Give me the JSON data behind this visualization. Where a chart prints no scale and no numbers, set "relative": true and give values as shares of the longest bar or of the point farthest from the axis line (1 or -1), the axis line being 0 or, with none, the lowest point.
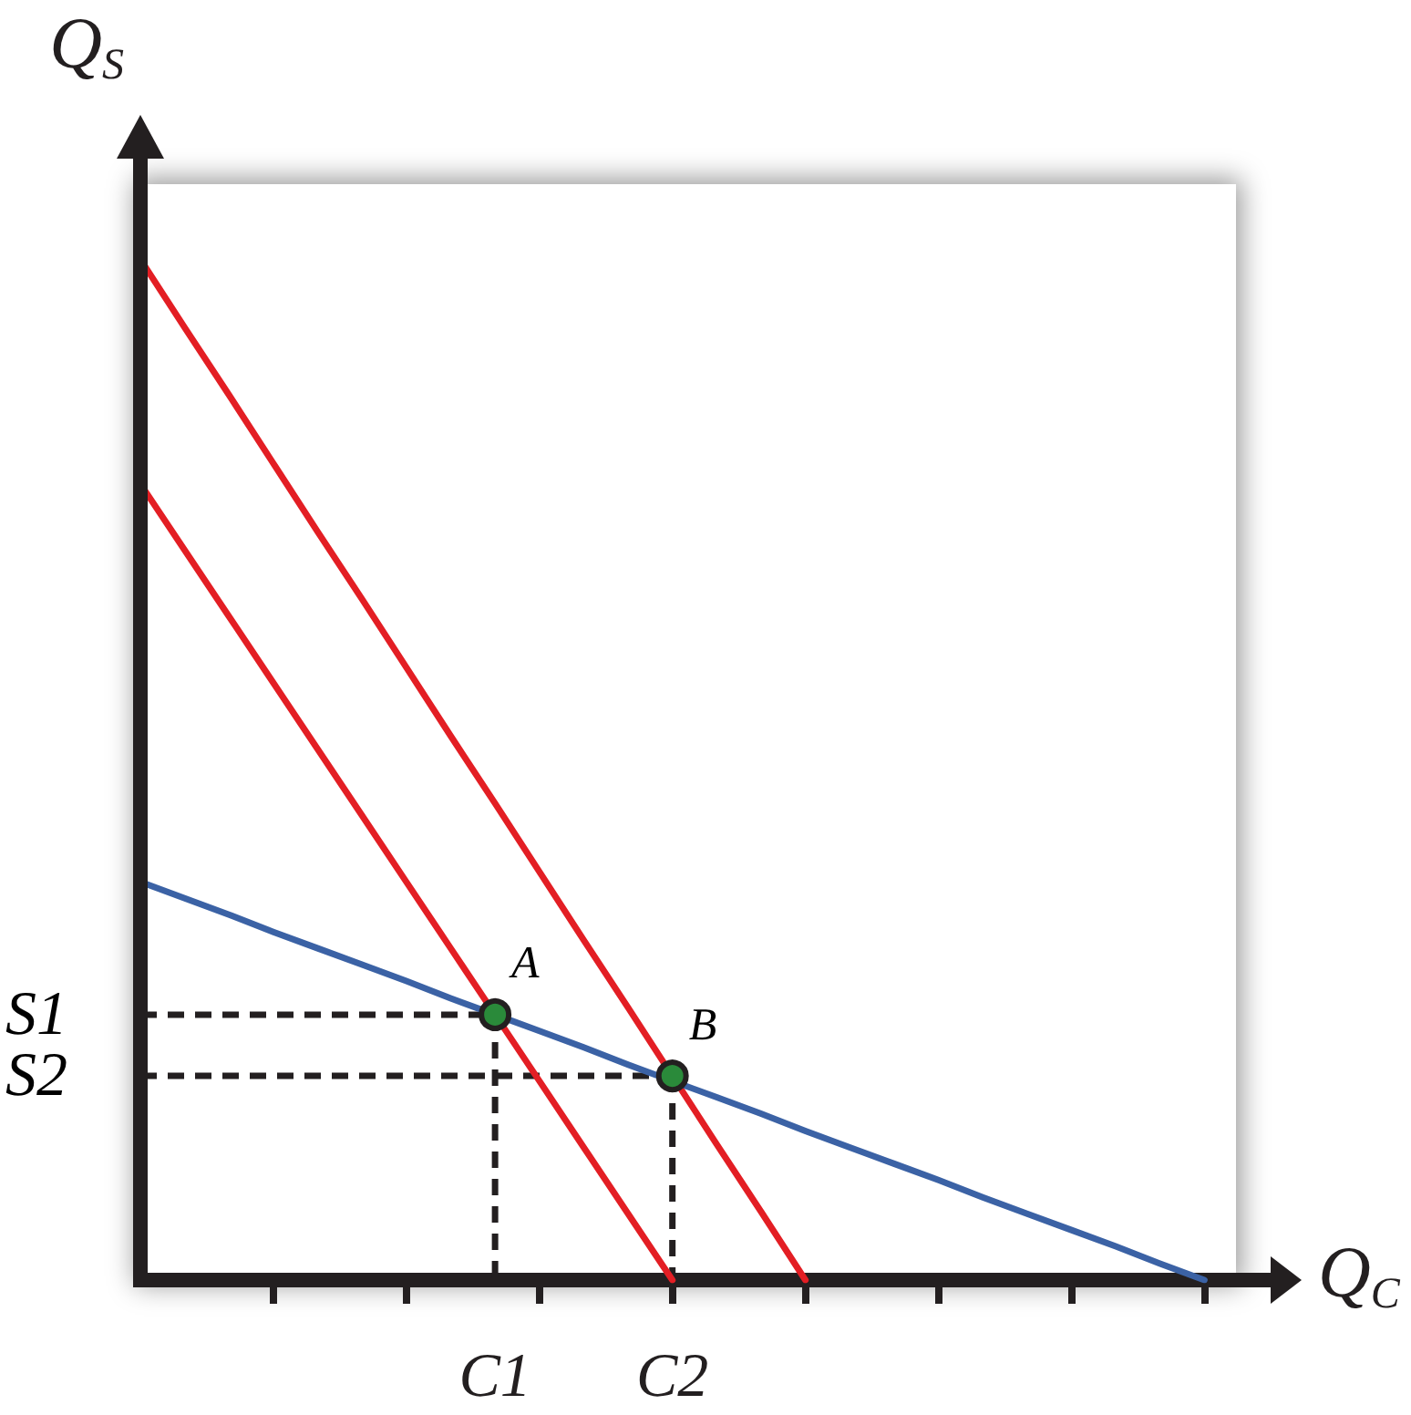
{
  "chart_data": {
    "type": "line",
    "relative": true,
    "xlabel": "Q$_{C}$",
    "ylabel": "Q$_{S}$",
    "categories": [
      null,
      null,
      null,
      null,
      null,
      null,
      null,
      null,
      "C1",
      null,
      null,
      null,
      "C2",
      null,
      null,
      null,
      null,
      null,
      null,
      null,
      null,
      null,
      null,
      null,
      null,
      null
    ],
    "series": [
      {
        "color": "#e31e24",
        "values": [
          0.78,
          0.715,
          0.65,
          0.585,
          0.52,
          0.455,
          0.39,
          0.325,
          0.26,
          0.195,
          0.13,
          0.065,
          0,
          null,
          null,
          null,
          null,
          null,
          null,
          null,
          null,
          null,
          null,
          null,
          null,
          null
        ]
      },
      {
        "color": "#e31e24",
        "values": [
          1,
          0.933,
          0.867,
          0.8,
          0.733,
          0.667,
          0.6,
          0.533,
          0.467,
          0.4,
          0.333,
          0.267,
          0.2,
          0.133,
          0.067,
          0,
          null,
          null,
          null,
          null,
          null,
          null,
          null,
          null,
          null,
          null
        ]
      },
      {
        "color": "#3b62a5",
        "values": [
          0.39,
          0.374,
          0.358,
          0.341,
          0.325,
          0.309,
          0.293,
          0.276,
          0.26,
          0.244,
          0.228,
          0.211,
          0.195,
          0.179,
          0.163,
          0.146,
          0.13,
          0.114,
          0.098,
          0.081,
          0.065,
          0.049,
          0.033,
          0.016,
          0,
          null
        ]
      },
      {
        "name": "S1",
        "color": "#231f20",
        "line_style": "dashed",
        "values": [
          0.26,
          0.26,
          0.26,
          0.26,
          0.26,
          0.26,
          0.26,
          0.26,
          0.26,
          null,
          null,
          null,
          null,
          null,
          null,
          null,
          null,
          null,
          null,
          null,
          null,
          null,
          null,
          null,
          null,
          null
        ]
      },
      {
        "name": "S2",
        "color": "#231f20",
        "line_style": "dashed",
        "values": [
          0.2,
          0.2,
          0.2,
          0.2,
          0.2,
          0.2,
          0.2,
          0.2,
          0.2,
          0.2,
          0.2,
          0.2,
          0.2,
          null,
          null,
          null,
          null,
          null,
          null,
          null,
          null,
          null,
          null,
          null,
          null,
          null
        ]
      },
      {
        "color": "#231f20",
        "line_style": "dashed",
        "x": [
          "C1",
          "C1"
        ],
        "values": [
          0.26,
          0
        ]
      },
      {
        "color": "#231f20",
        "line_style": "dashed",
        "x": [
          "C2",
          "C2"
        ],
        "values": [
          0.2,
          0
        ]
      },
      {
        "type": "scatter",
        "color": "#2a8a3a",
        "marker": "circle",
        "x": [
          "C1",
          "C2"
        ],
        "values": [
          0.26,
          0.2
        ]
      }
    ],
    "annotations": [
      {
        "text": "A",
        "x": "C1",
        "y": 0.26
      },
      {
        "text": "B",
        "x": "C2",
        "y": 0.2
      }
    ]
  }
}
